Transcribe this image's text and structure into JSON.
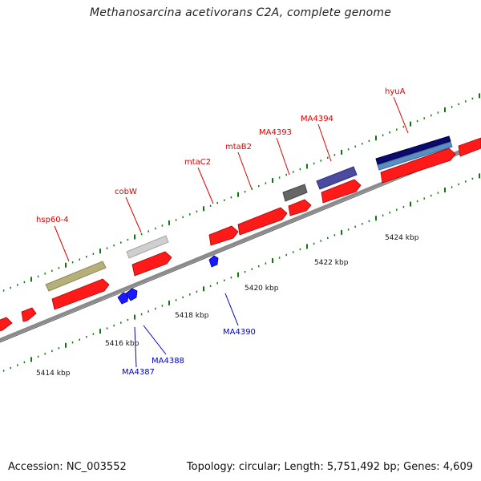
{
  "title": "Methanosarcina acetivorans C2A, complete genome",
  "footer": {
    "accession": "Accession: NC_003552",
    "summary": "Topology: circular; Length: 5,751,492 bp; Genes: 4,609"
  },
  "colors": {
    "forward_gene_label": "#dd0000",
    "reverse_gene_label": "#0000cc",
    "cds_red": "#ff0000",
    "cds_blue": "#1a1aff",
    "tick_green": "#117711",
    "backbone_gray": "#888888"
  },
  "scale_labels": [
    "5414 kbp",
    "5416 kbp",
    "5418 kbp",
    "5420 kbp",
    "5422 kbp",
    "5424 kbp"
  ],
  "forward_genes": [
    "hsp60-4",
    "cobW",
    "mtaC2",
    "mtaB2",
    "MA4393",
    "MA4394",
    "hyuA"
  ],
  "reverse_genes": [
    "MA4387",
    "MA4388",
    "MA4390"
  ]
}
